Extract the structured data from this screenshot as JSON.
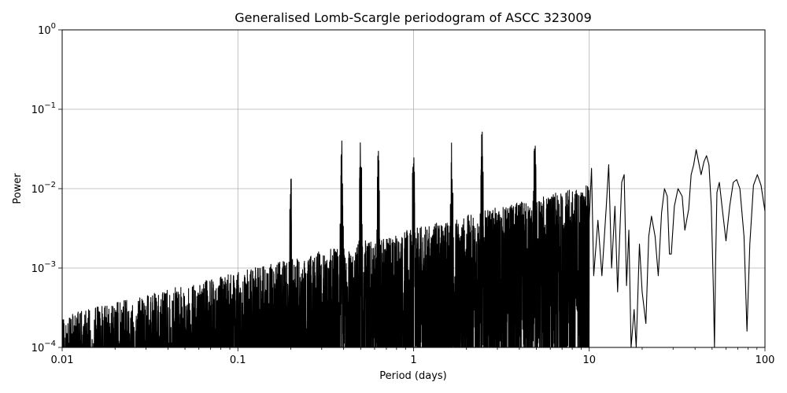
{
  "chart_data": {
    "type": "line",
    "title": "Generalised Lomb-Scargle periodogram of ASCC 323009",
    "xlabel": "Period (days)",
    "ylabel": "Power",
    "xscale": "log",
    "yscale": "log",
    "xlim": [
      0.01,
      100
    ],
    "ylim": [
      0.0001,
      1
    ],
    "grid": true,
    "line_color": "#000000",
    "x_ticks": [
      {
        "value": 0.01,
        "label": "0.01"
      },
      {
        "value": 0.1,
        "label": "0.1"
      },
      {
        "value": 1,
        "label": "1"
      },
      {
        "value": 10,
        "label": "10"
      },
      {
        "value": 100,
        "label": "100"
      }
    ],
    "y_ticks": [
      {
        "value": 0.0001,
        "base": "10",
        "exp": "−4"
      },
      {
        "value": 0.001,
        "base": "10",
        "exp": "−3"
      },
      {
        "value": 0.01,
        "base": "10",
        "exp": "−2"
      },
      {
        "value": 0.1,
        "base": "10",
        "exp": "−1"
      },
      {
        "value": 1,
        "base": "10",
        "exp": "0"
      }
    ],
    "series": [
      {
        "values_description": "dense noisy periodogram; approximate envelope peaks listed",
        "peaks": [
          {
            "x": 0.2,
            "y": 0.018
          },
          {
            "x": 0.39,
            "y": 0.045
          },
          {
            "x": 0.5,
            "y": 0.05
          },
          {
            "x": 0.63,
            "y": 0.04
          },
          {
            "x": 1.0,
            "y": 0.045
          },
          {
            "x": 1.65,
            "y": 0.042
          },
          {
            "x": 2.45,
            "y": 0.06
          },
          {
            "x": 4.9,
            "y": 0.05
          },
          {
            "x": 10.0,
            "y": 0.032
          },
          {
            "x": 12.8,
            "y": 0.02
          },
          {
            "x": 15.5,
            "y": 0.015
          },
          {
            "x": 22.5,
            "y": 0.0045
          },
          {
            "x": 27.0,
            "y": 0.01
          },
          {
            "x": 33.0,
            "y": 0.01
          },
          {
            "x": 40.5,
            "y": 0.031
          },
          {
            "x": 46.5,
            "y": 0.026
          },
          {
            "x": 55.0,
            "y": 0.012
          },
          {
            "x": 69.0,
            "y": 0.013
          },
          {
            "x": 90.0,
            "y": 0.015
          }
        ],
        "smooth_curve": [
          [
            10,
            0.004
          ],
          [
            10.3,
            0.018
          ],
          [
            10.6,
            0.0008
          ],
          [
            11.2,
            0.004
          ],
          [
            11.8,
            0.0008
          ],
          [
            12.5,
            0.006
          ],
          [
            12.9,
            0.02
          ],
          [
            13.4,
            0.001
          ],
          [
            14.0,
            0.006
          ],
          [
            14.5,
            0.0005
          ],
          [
            15.3,
            0.012
          ],
          [
            15.8,
            0.015
          ],
          [
            16.3,
            0.0006
          ],
          [
            16.8,
            0.003
          ],
          [
            17.3,
            0.0001
          ],
          [
            18.0,
            0.0003
          ],
          [
            18.5,
            0.0001
          ],
          [
            19.3,
            0.002
          ],
          [
            20.0,
            0.0005
          ],
          [
            21.0,
            0.0002
          ],
          [
            21.8,
            0.0025
          ],
          [
            22.6,
            0.0045
          ],
          [
            23.7,
            0.0025
          ],
          [
            24.7,
            0.0008
          ],
          [
            25.8,
            0.005
          ],
          [
            26.8,
            0.01
          ],
          [
            27.8,
            0.008
          ],
          [
            28.6,
            0.0015
          ],
          [
            29.3,
            0.0015
          ],
          [
            30.5,
            0.006
          ],
          [
            32.0,
            0.01
          ],
          [
            33.8,
            0.008
          ],
          [
            35.0,
            0.003
          ],
          [
            36.8,
            0.0055
          ],
          [
            38.0,
            0.015
          ],
          [
            39.3,
            0.02
          ],
          [
            40.6,
            0.031
          ],
          [
            42.2,
            0.02
          ],
          [
            43.3,
            0.015
          ],
          [
            45.0,
            0.022
          ],
          [
            46.5,
            0.026
          ],
          [
            48.0,
            0.02
          ],
          [
            49.5,
            0.006
          ],
          [
            50.8,
            0.0006
          ],
          [
            51.6,
            0.0001
          ],
          [
            52.3,
            0.001
          ],
          [
            53.3,
            0.009
          ],
          [
            55.0,
            0.012
          ],
          [
            57.2,
            0.0055
          ],
          [
            60.0,
            0.0022
          ],
          [
            63.0,
            0.006
          ],
          [
            66.0,
            0.012
          ],
          [
            69.0,
            0.013
          ],
          [
            72.0,
            0.01
          ],
          [
            76.0,
            0.0025
          ],
          [
            79.0,
            0.00016
          ],
          [
            82.0,
            0.002
          ],
          [
            86.0,
            0.011
          ],
          [
            90.5,
            0.015
          ],
          [
            95.0,
            0.011
          ],
          [
            100.0,
            0.0052
          ]
        ]
      }
    ]
  }
}
